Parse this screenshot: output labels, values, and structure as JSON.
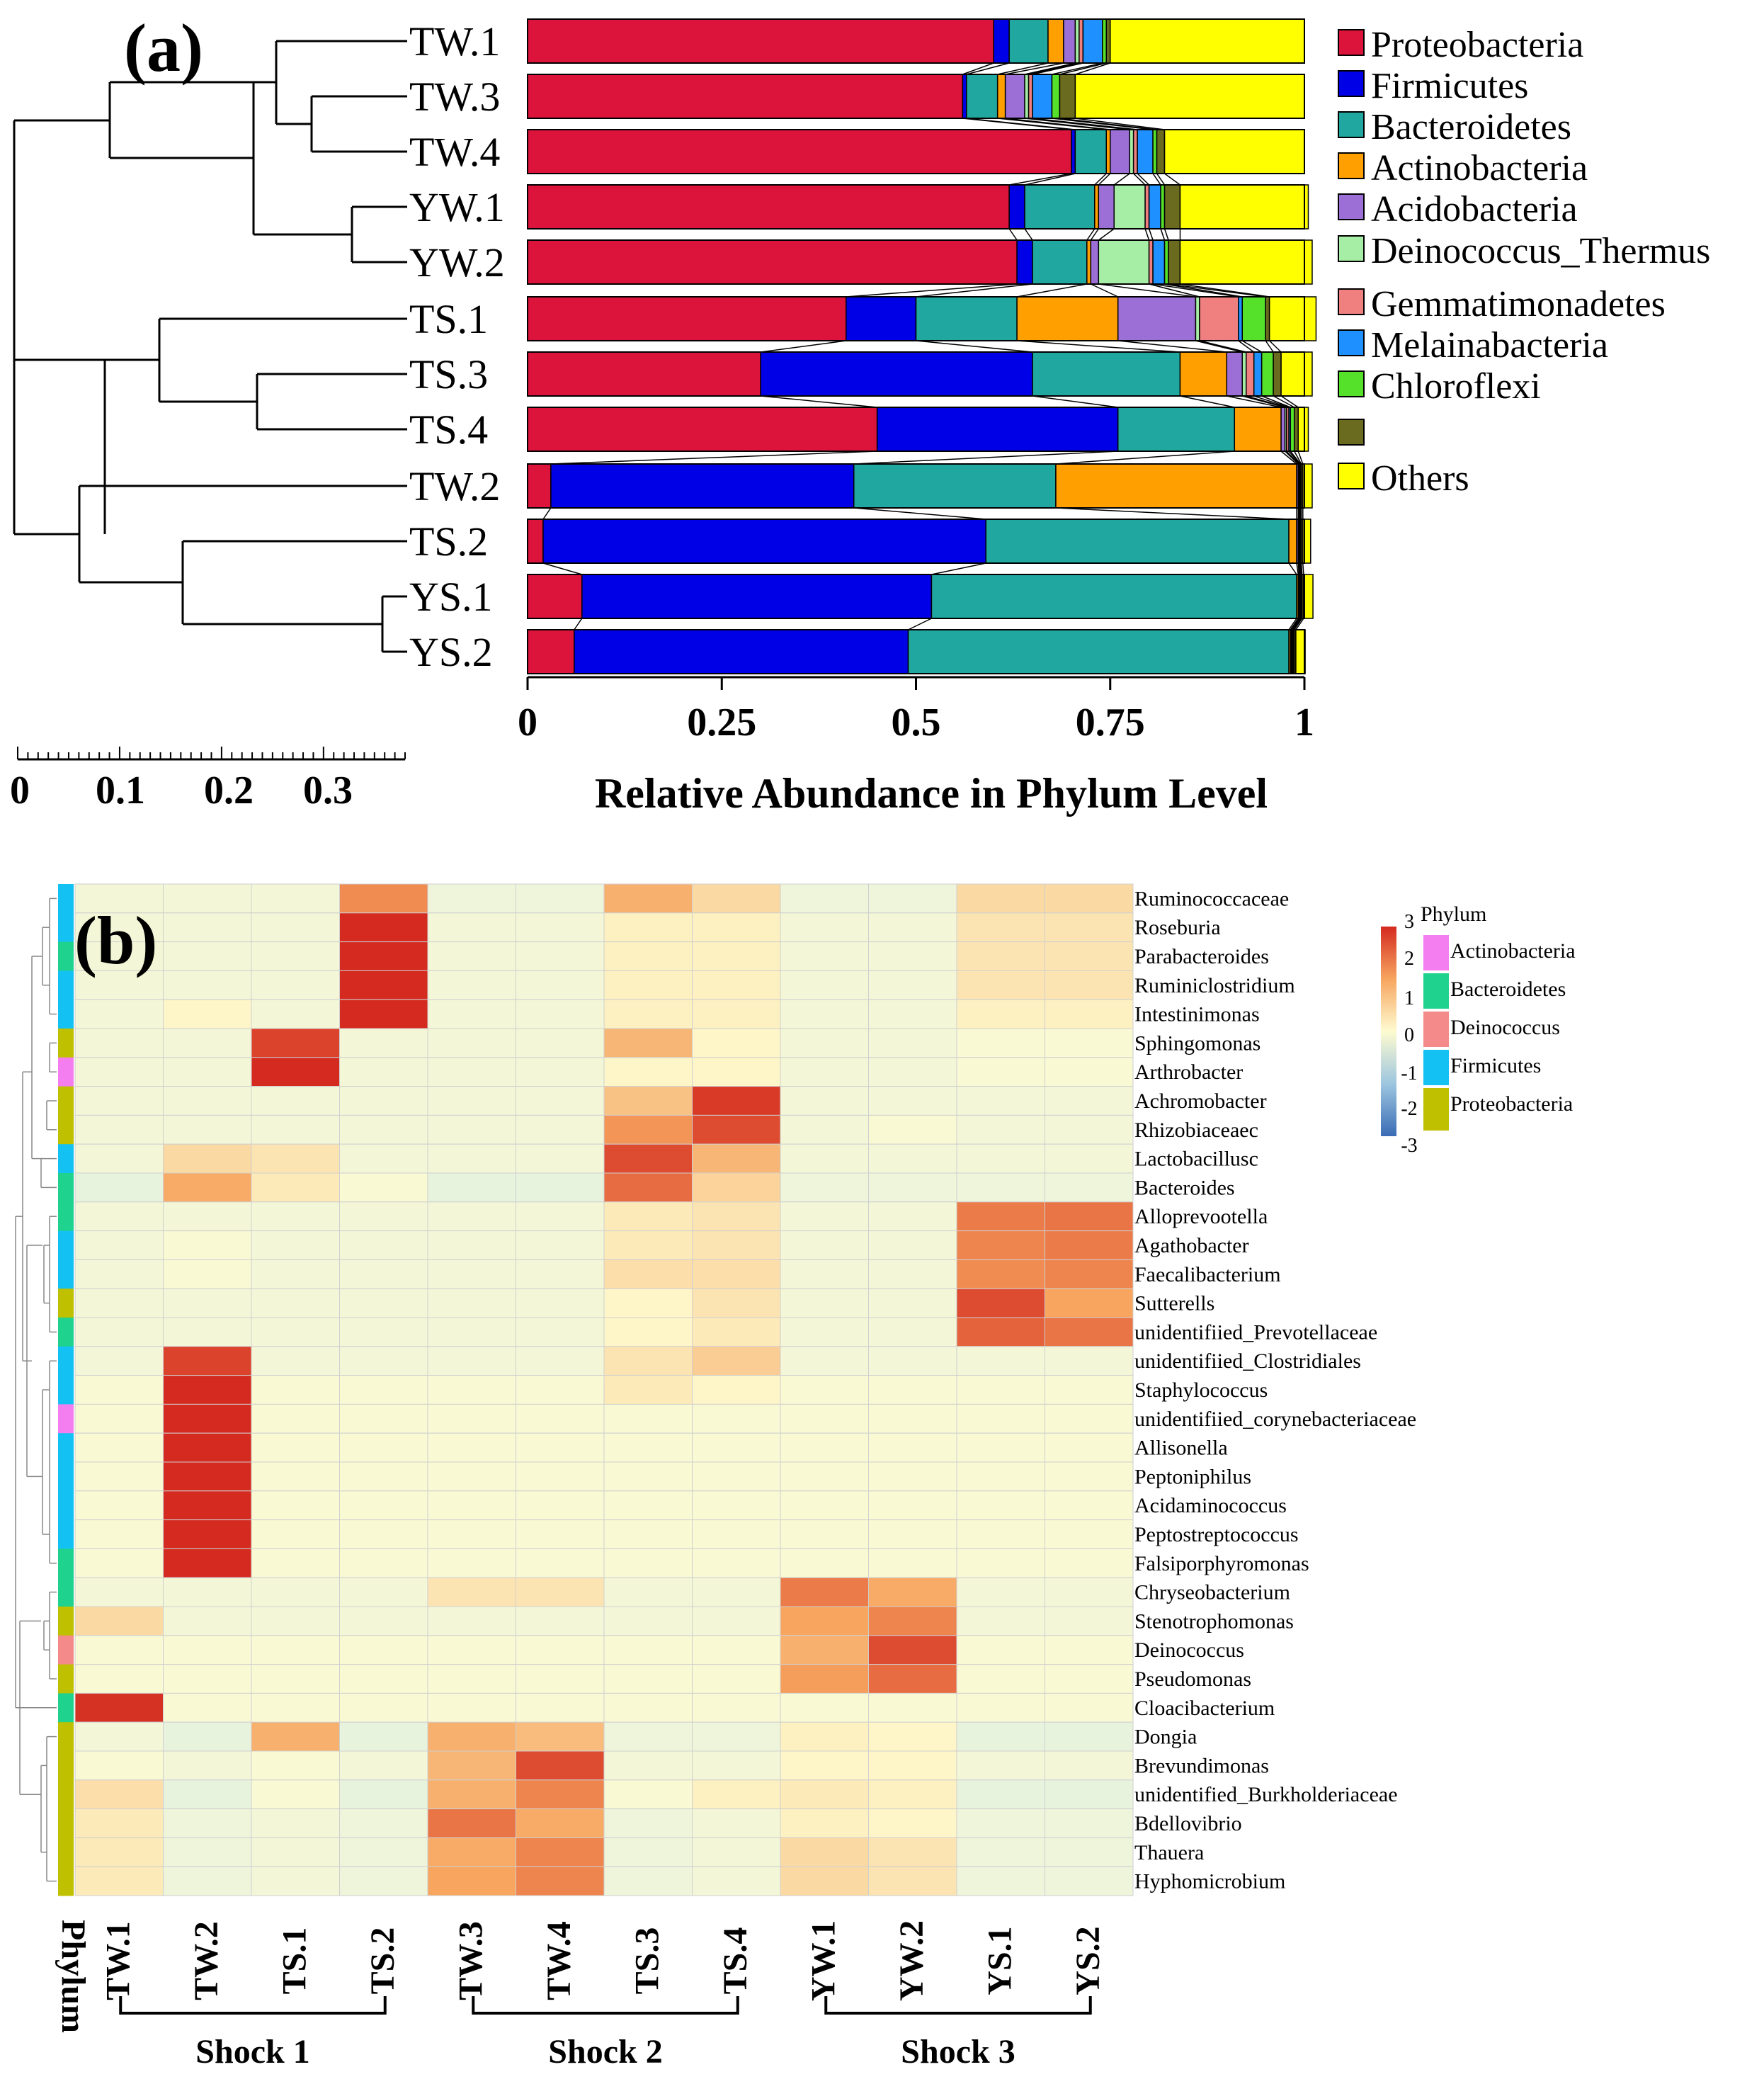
{
  "chart_data": [
    {
      "type": "bar",
      "orientation": "horizontal",
      "stacked": true,
      "panel_label": "(a)",
      "xlabel": "Relative Abundance in Phylum Level",
      "xlim": [
        0,
        1
      ],
      "xticks": [
        "0",
        "0.25",
        "0.5",
        "0.75",
        "1"
      ],
      "tree_scale_ticks": [
        "0",
        "0.1",
        "0.2",
        "0.3"
      ],
      "categories": [
        "TW.1",
        "TW.3",
        "TW.4",
        "YW.1",
        "YW.2",
        "TS.1",
        "TS.3",
        "TS.4",
        "TW.2",
        "TS.2",
        "YS.1",
        "YS.2"
      ],
      "series": [
        {
          "name": "Proteobacteria",
          "color": "#dc143c",
          "values": [
            0.6,
            0.56,
            0.7,
            0.62,
            0.63,
            0.41,
            0.3,
            0.45,
            0.03,
            0.02,
            0.07,
            0.06
          ]
        },
        {
          "name": "Firmicutes",
          "color": "#0000e6",
          "values": [
            0.02,
            0.005,
            0.005,
            0.02,
            0.02,
            0.09,
            0.35,
            0.31,
            0.39,
            0.57,
            0.45,
            0.43
          ]
        },
        {
          "name": "Bacteroidetes",
          "color": "#20a8a0",
          "values": [
            0.05,
            0.04,
            0.04,
            0.09,
            0.07,
            0.13,
            0.19,
            0.15,
            0.26,
            0.39,
            0.47,
            0.49
          ]
        },
        {
          "name": "Actinobacteria",
          "color": "#ff9f00",
          "values": [
            0.02,
            0.01,
            0.005,
            0.005,
            0.005,
            0.13,
            0.06,
            0.06,
            0.31,
            0.01,
            0.002,
            0.002
          ]
        },
        {
          "name": "Acidobacteria",
          "color": "#9c6fd6",
          "values": [
            0.015,
            0.025,
            0.025,
            0.02,
            0.01,
            0.1,
            0.02,
            0.005,
            0.002,
            0.002,
            0.001,
            0.001
          ]
        },
        {
          "name": "Deinococcus_Thermus",
          "color": "#a6eea6",
          "values": [
            0.005,
            0.005,
            0.005,
            0.04,
            0.065,
            0.005,
            0.005,
            0.002,
            0.001,
            0.001,
            0.001,
            0.001
          ]
        },
        {
          "name": "Gemmatimonadetes",
          "color": "#f08080",
          "values": [
            0.005,
            0.005,
            0.005,
            0.005,
            0.005,
            0.05,
            0.01,
            0.003,
            0.001,
            0.001,
            0.001,
            0.001
          ]
        },
        {
          "name": "Melainabacteria",
          "color": "#1e90ff",
          "values": [
            0.025,
            0.025,
            0.02,
            0.015,
            0.015,
            0.005,
            0.01,
            0.002,
            0.001,
            0.001,
            0.001,
            0.001
          ]
        },
        {
          "name": "Chloroflexi",
          "color": "#55e02a",
          "values": [
            0.005,
            0.01,
            0.005,
            0.005,
            0.005,
            0.03,
            0.015,
            0.005,
            0.001,
            0.001,
            0.001,
            0.001
          ]
        },
        {
          "name": "",
          "color": "#6b6b1f",
          "values": [
            0.005,
            0.02,
            0.01,
            0.02,
            0.015,
            0.005,
            0.01,
            0.005,
            0.002,
            0.002,
            0.002,
            0.002
          ]
        },
        {
          "name": "Others",
          "color": "#ffff00",
          "values": [
            0.25,
            0.295,
            0.18,
            0.165,
            0.17,
            0.06,
            0.04,
            0.013,
            0.012,
            0.01,
            0.012,
            0.012
          ]
        }
      ]
    },
    {
      "type": "heatmap",
      "panel_label": "(b)",
      "color_scale": {
        "min": -3,
        "max": 3,
        "ticks": [
          "3",
          "2",
          "1",
          "0",
          "-1",
          "-2",
          "-3"
        ],
        "colors": [
          "#3a6cb5",
          "#9dc6e0",
          "#fefbd0",
          "#f7a55f",
          "#d42a20"
        ]
      },
      "columns": [
        "TW.1",
        "TW.2",
        "TS.1",
        "TS.2",
        "TW.3",
        "TW.4",
        "TS.3",
        "TS.4",
        "YW.1",
        "YW.2",
        "YS.1",
        "YS.2"
      ],
      "column_groups": [
        {
          "name": "Shock 1",
          "span": [
            0,
            3
          ]
        },
        {
          "name": "Shock 2",
          "span": [
            4,
            7
          ]
        },
        {
          "name": "Shock 3",
          "span": [
            8,
            11
          ]
        }
      ],
      "phylum_axis_label": "Phylum",
      "phylum_legend_title": "Phylum",
      "phylum_legend": [
        {
          "name": "Actinobacteria",
          "color": "#f47ef0"
        },
        {
          "name": "Bacteroidetes",
          "color": "#1fd28e"
        },
        {
          "name": "Deinococcus",
          "color": "#f48a8a"
        },
        {
          "name": "Firmicutes",
          "color": "#13c2f2"
        },
        {
          "name": "Proteobacteria",
          "color": "#bfc000"
        }
      ],
      "rows": [
        "Ruminococcaceae",
        "Roseburia",
        "Parabacteroides",
        "Ruminiclostridium",
        "Intestinimonas",
        "Sphingomonas",
        "Arthrobacter",
        "Achromobacter",
        "Rhizobiaceaec",
        "Lactobacillusc",
        "Bacteroides",
        "Alloprevootella",
        "Agathobacter",
        "Faecalibacterium",
        "Sutterells",
        "unidentifiied_Prevotellaceae",
        "unidentifiied_Clostridiales",
        "Staphylococcus",
        "unidentifiied_corynebacteriaceae",
        "Allisonella",
        "Peptoniphilus",
        "Acidaminococcus",
        "Peptostreptococcus",
        "Falsiporphyromonas",
        "Chryseobacterium",
        "Stenotrophomonas",
        "Deinococcus",
        "Pseudomonas",
        "Cloacibacterium",
        "Dongia",
        "Brevundimonas",
        "unidentified_Burkholderiaceae",
        "Bdellovibrio",
        "Thauera",
        "Hyphomicrobium"
      ],
      "row_phylum": [
        3,
        3,
        1,
        3,
        3,
        4,
        0,
        4,
        4,
        3,
        1,
        1,
        3,
        3,
        4,
        1,
        3,
        3,
        0,
        3,
        3,
        3,
        3,
        1,
        1,
        4,
        2,
        4,
        1,
        4,
        4,
        4,
        4,
        4,
        4
      ],
      "values": [
        [
          -0.2,
          -0.2,
          -0.2,
          1.8,
          -0.3,
          -0.3,
          1.3,
          0.6,
          -0.3,
          -0.3,
          0.6,
          0.6
        ],
        [
          -0.2,
          -0.2,
          -0.2,
          3.0,
          -0.2,
          -0.2,
          0.2,
          0.2,
          -0.2,
          -0.2,
          0.4,
          0.4
        ],
        [
          -0.2,
          -0.2,
          -0.2,
          3.0,
          -0.2,
          -0.2,
          0.2,
          0.2,
          -0.2,
          -0.2,
          0.4,
          0.4
        ],
        [
          -0.2,
          -0.2,
          -0.2,
          3.0,
          -0.2,
          -0.2,
          0.2,
          0.2,
          -0.2,
          -0.2,
          0.4,
          0.4
        ],
        [
          -0.2,
          0.1,
          -0.2,
          3.0,
          -0.2,
          -0.2,
          0.2,
          0.2,
          -0.2,
          -0.2,
          0.2,
          0.2
        ],
        [
          -0.2,
          -0.2,
          2.7,
          -0.2,
          -0.2,
          -0.2,
          1.2,
          0.1,
          -0.2,
          -0.2,
          -0.1,
          -0.1
        ],
        [
          -0.2,
          -0.2,
          3.0,
          -0.2,
          -0.2,
          -0.2,
          0.1,
          0.1,
          -0.2,
          -0.2,
          -0.1,
          -0.1
        ],
        [
          -0.2,
          -0.2,
          -0.2,
          -0.2,
          -0.2,
          -0.2,
          1.0,
          2.8,
          -0.2,
          -0.2,
          -0.2,
          -0.2
        ],
        [
          -0.2,
          -0.2,
          -0.2,
          -0.2,
          -0.2,
          -0.2,
          1.7,
          2.6,
          -0.2,
          -0.1,
          -0.2,
          -0.2
        ],
        [
          -0.2,
          0.6,
          0.4,
          -0.2,
          -0.2,
          -0.2,
          2.6,
          1.2,
          -0.2,
          -0.2,
          -0.2,
          -0.2
        ],
        [
          -0.4,
          1.4,
          0.3,
          -0.1,
          -0.4,
          -0.4,
          2.2,
          0.7,
          -0.3,
          -0.3,
          -0.3,
          -0.3
        ],
        [
          -0.2,
          -0.2,
          -0.2,
          -0.2,
          -0.2,
          -0.2,
          0.3,
          0.4,
          -0.2,
          -0.2,
          2.0,
          2.1
        ],
        [
          -0.2,
          -0.1,
          -0.2,
          -0.2,
          -0.2,
          -0.2,
          0.3,
          0.4,
          -0.2,
          -0.2,
          1.9,
          2.0
        ],
        [
          -0.2,
          -0.1,
          -0.2,
          -0.2,
          -0.2,
          -0.2,
          0.5,
          0.5,
          -0.2,
          -0.2,
          1.8,
          1.9
        ],
        [
          -0.2,
          -0.2,
          -0.2,
          -0.2,
          -0.2,
          -0.2,
          0.1,
          0.4,
          -0.2,
          -0.2,
          2.6,
          1.5
        ],
        [
          -0.2,
          -0.2,
          -0.2,
          -0.2,
          -0.2,
          -0.2,
          0.1,
          0.3,
          -0.2,
          -0.2,
          2.3,
          2.1
        ],
        [
          -0.2,
          2.7,
          -0.2,
          -0.2,
          -0.2,
          -0.2,
          0.4,
          0.8,
          -0.2,
          -0.2,
          -0.2,
          -0.2
        ],
        [
          -0.1,
          3.0,
          -0.1,
          -0.1,
          -0.1,
          -0.1,
          0.3,
          0.1,
          -0.1,
          -0.1,
          -0.1,
          -0.1
        ],
        [
          -0.1,
          3.0,
          -0.1,
          -0.1,
          -0.1,
          -0.1,
          -0.1,
          -0.1,
          -0.1,
          -0.1,
          -0.1,
          -0.1
        ],
        [
          -0.1,
          3.0,
          -0.1,
          -0.1,
          -0.1,
          -0.1,
          -0.1,
          -0.1,
          -0.1,
          -0.1,
          -0.1,
          -0.1
        ],
        [
          -0.1,
          3.0,
          -0.1,
          -0.1,
          -0.1,
          -0.1,
          -0.1,
          -0.1,
          -0.1,
          -0.1,
          -0.1,
          -0.1
        ],
        [
          -0.1,
          3.0,
          -0.1,
          -0.1,
          -0.1,
          -0.1,
          -0.1,
          -0.1,
          -0.1,
          -0.1,
          -0.1,
          -0.1
        ],
        [
          -0.1,
          3.0,
          -0.1,
          -0.1,
          -0.1,
          -0.1,
          -0.1,
          -0.1,
          -0.1,
          -0.1,
          -0.1,
          -0.1
        ],
        [
          -0.1,
          3.0,
          -0.1,
          -0.1,
          -0.1,
          -0.1,
          -0.1,
          -0.1,
          -0.1,
          -0.1,
          -0.1,
          -0.1
        ],
        [
          -0.2,
          -0.2,
          -0.2,
          -0.2,
          0.4,
          0.4,
          -0.2,
          -0.2,
          2.0,
          1.4,
          -0.2,
          -0.2
        ],
        [
          0.6,
          -0.2,
          -0.2,
          -0.2,
          -0.2,
          -0.2,
          -0.2,
          -0.2,
          1.5,
          1.9,
          -0.2,
          -0.2
        ],
        [
          -0.1,
          -0.1,
          -0.1,
          -0.1,
          -0.1,
          -0.1,
          -0.1,
          -0.1,
          1.3,
          2.6,
          -0.1,
          -0.1
        ],
        [
          -0.1,
          -0.1,
          -0.1,
          -0.1,
          -0.1,
          -0.1,
          -0.1,
          -0.1,
          1.6,
          2.2,
          -0.1,
          -0.1
        ],
        [
          2.9,
          -0.1,
          -0.1,
          -0.1,
          -0.1,
          -0.1,
          -0.1,
          -0.1,
          -0.1,
          -0.1,
          -0.1,
          -0.1
        ],
        [
          -0.2,
          -0.5,
          1.3,
          -0.5,
          1.3,
          1.1,
          -0.3,
          -0.3,
          0.2,
          0.1,
          -0.6,
          -0.6
        ],
        [
          -0.1,
          -0.2,
          -0.1,
          -0.2,
          1.2,
          2.6,
          -0.2,
          -0.2,
          0.1,
          0.1,
          -0.2,
          -0.2
        ],
        [
          0.5,
          -0.8,
          -0.1,
          -0.8,
          1.3,
          1.9,
          -0.1,
          0.2,
          0.3,
          0.2,
          -0.8,
          -0.8
        ],
        [
          0.3,
          -0.3,
          -0.2,
          -0.3,
          2.1,
          1.4,
          -0.3,
          -0.2,
          0.2,
          0.1,
          -0.3,
          -0.3
        ],
        [
          0.3,
          -0.3,
          -0.2,
          -0.3,
          1.4,
          1.9,
          -0.3,
          -0.2,
          0.6,
          0.4,
          -0.3,
          -0.3
        ],
        [
          0.3,
          -0.3,
          -0.2,
          -0.3,
          1.5,
          1.9,
          -0.3,
          -0.2,
          0.6,
          0.4,
          -0.3,
          -0.3
        ]
      ]
    }
  ]
}
